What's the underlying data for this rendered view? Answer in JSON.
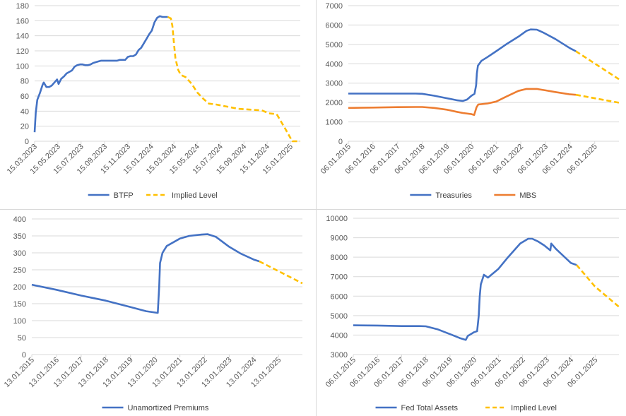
{
  "chart_data": [
    {
      "type": "line",
      "title": "",
      "xlabel": "",
      "ylabel": "",
      "ylim": [
        0,
        180
      ],
      "yticks": [
        0,
        20,
        40,
        60,
        80,
        100,
        120,
        140,
        160,
        180
      ],
      "grid": true,
      "legend_position": "bottom",
      "x_type": "date",
      "x_ticks": [
        "15.03.2023",
        "15.05.2023",
        "15.07.2023",
        "15.09.2023",
        "15.11.2023",
        "15.01.2024",
        "15.03.2024",
        "15.05.2024",
        "15.07.2024",
        "15.09.2024",
        "15.11.2024",
        "15.01.2025"
      ],
      "xlim": [
        "2023-03-15",
        "2025-02-10"
      ],
      "series": [
        {
          "name": "BTFP",
          "color": "#4472c4",
          "style": "solid",
          "points": [
            [
              "2023-03-15",
              12
            ],
            [
              "2023-03-18",
              38
            ],
            [
              "2023-03-22",
              55
            ],
            [
              "2023-03-29",
              64
            ],
            [
              "2023-04-05",
              75
            ],
            [
              "2023-04-08",
              78
            ],
            [
              "2023-04-15",
              72
            ],
            [
              "2023-04-22",
              72
            ],
            [
              "2023-04-29",
              74
            ],
            [
              "2023-05-06",
              78
            ],
            [
              "2023-05-13",
              82
            ],
            [
              "2023-05-17",
              76
            ],
            [
              "2023-05-24",
              83
            ],
            [
              "2023-05-31",
              86
            ],
            [
              "2023-06-07",
              90
            ],
            [
              "2023-06-14",
              92
            ],
            [
              "2023-06-21",
              94
            ],
            [
              "2023-06-28",
              99
            ],
            [
              "2023-07-05",
              101
            ],
            [
              "2023-07-12",
              102
            ],
            [
              "2023-07-19",
              102
            ],
            [
              "2023-07-26",
              101
            ],
            [
              "2023-08-02",
              101
            ],
            [
              "2023-08-09",
              102
            ],
            [
              "2023-08-16",
              104
            ],
            [
              "2023-08-23",
              105
            ],
            [
              "2023-08-30",
              106
            ],
            [
              "2023-09-06",
              107
            ],
            [
              "2023-09-13",
              107
            ],
            [
              "2023-09-20",
              107
            ],
            [
              "2023-09-27",
              107
            ],
            [
              "2023-10-04",
              107
            ],
            [
              "2023-10-11",
              107
            ],
            [
              "2023-10-18",
              107
            ],
            [
              "2023-10-25",
              108
            ],
            [
              "2023-11-01",
              108
            ],
            [
              "2023-11-08",
              108
            ],
            [
              "2023-11-15",
              112
            ],
            [
              "2023-11-22",
              113
            ],
            [
              "2023-11-29",
              113
            ],
            [
              "2023-12-06",
              115
            ],
            [
              "2023-12-13",
              121
            ],
            [
              "2023-12-20",
              124
            ],
            [
              "2023-12-27",
              130
            ],
            [
              "2024-01-03",
              136
            ],
            [
              "2024-01-10",
              142
            ],
            [
              "2024-01-17",
              147
            ],
            [
              "2024-01-24",
              158
            ],
            [
              "2024-01-31",
              164
            ],
            [
              "2024-02-07",
              166
            ],
            [
              "2024-02-14",
              165
            ],
            [
              "2024-02-21",
              165
            ],
            [
              "2024-02-28",
              165
            ]
          ]
        },
        {
          "name": "Implied Level",
          "color": "#ffc000",
          "style": "dashed",
          "points": [
            [
              "2024-02-28",
              165
            ],
            [
              "2024-03-07",
              163
            ],
            [
              "2024-03-11",
              153
            ],
            [
              "2024-03-15",
              130
            ],
            [
              "2024-03-19",
              110
            ],
            [
              "2024-03-26",
              95
            ],
            [
              "2024-04-02",
              88
            ],
            [
              "2024-04-15",
              85
            ],
            [
              "2024-05-01",
              76
            ],
            [
              "2024-05-15",
              65
            ],
            [
              "2024-06-01",
              56
            ],
            [
              "2024-06-15",
              50
            ],
            [
              "2024-07-01",
              49
            ],
            [
              "2024-08-01",
              46
            ],
            [
              "2024-09-01",
              43
            ],
            [
              "2024-10-01",
              42
            ],
            [
              "2024-11-01",
              41
            ],
            [
              "2024-11-20",
              37
            ],
            [
              "2024-12-10",
              36
            ],
            [
              "2025-01-01",
              17
            ],
            [
              "2025-01-20",
              0
            ],
            [
              "2025-02-10",
              0
            ]
          ]
        }
      ]
    },
    {
      "type": "line",
      "title": "",
      "xlabel": "",
      "ylabel": "",
      "ylim": [
        0,
        7000
      ],
      "yticks": [
        0,
        1000,
        2000,
        3000,
        4000,
        5000,
        6000,
        7000
      ],
      "grid": true,
      "legend_position": "bottom",
      "x_type": "date",
      "x_ticks": [
        "06.01.2015",
        "06.01.2016",
        "06.01.2017",
        "06.01.2018",
        "06.01.2019",
        "06.01.2020",
        "06.01.2021",
        "06.01.2022",
        "06.01.2023",
        "06.01.2024",
        "06.01.2025"
      ],
      "xlim": [
        "2015-01-06",
        "2025-12-31"
      ],
      "series": [
        {
          "name": "Treasuries",
          "color": "#4472c4",
          "style": "solid",
          "points": [
            [
              "2015-01-06",
              2460
            ],
            [
              "2016-01-06",
              2460
            ],
            [
              "2017-01-06",
              2460
            ],
            [
              "2017-10-01",
              2460
            ],
            [
              "2018-01-06",
              2450
            ],
            [
              "2018-07-01",
              2350
            ],
            [
              "2019-01-06",
              2220
            ],
            [
              "2019-06-01",
              2120
            ],
            [
              "2019-09-01",
              2080
            ],
            [
              "2019-11-01",
              2150
            ],
            [
              "2020-01-06",
              2350
            ],
            [
              "2020-02-20",
              2450
            ],
            [
              "2020-03-15",
              2900
            ],
            [
              "2020-03-25",
              3500
            ],
            [
              "2020-04-10",
              3900
            ],
            [
              "2020-06-01",
              4150
            ],
            [
              "2020-09-01",
              4350
            ],
            [
              "2021-01-06",
              4650
            ],
            [
              "2021-06-01",
              5000
            ],
            [
              "2021-12-01",
              5400
            ],
            [
              "2022-04-01",
              5700
            ],
            [
              "2022-06-01",
              5770
            ],
            [
              "2022-09-01",
              5760
            ],
            [
              "2022-12-01",
              5620
            ],
            [
              "2023-06-01",
              5280
            ],
            [
              "2024-01-06",
              4800
            ],
            [
              "2024-04-01",
              4650
            ]
          ]
        },
        {
          "name": "",
          "color": "#ffc000",
          "style": "dashed",
          "points": [
            [
              "2024-04-01",
              4650
            ],
            [
              "2025-12-31",
              3200
            ]
          ]
        },
        {
          "name": "MBS",
          "color": "#ed7d31",
          "style": "solid",
          "points": [
            [
              "2015-01-06",
              1720
            ],
            [
              "2016-01-06",
              1740
            ],
            [
              "2017-01-06",
              1760
            ],
            [
              "2017-10-01",
              1770
            ],
            [
              "2018-01-06",
              1770
            ],
            [
              "2018-07-01",
              1720
            ],
            [
              "2019-01-06",
              1630
            ],
            [
              "2019-06-01",
              1520
            ],
            [
              "2019-09-01",
              1460
            ],
            [
              "2020-01-06",
              1400
            ],
            [
              "2020-02-15",
              1360
            ],
            [
              "2020-03-20",
              1750
            ],
            [
              "2020-04-15",
              1900
            ],
            [
              "2020-09-01",
              1950
            ],
            [
              "2021-01-06",
              2050
            ],
            [
              "2021-06-01",
              2300
            ],
            [
              "2021-12-01",
              2600
            ],
            [
              "2022-04-01",
              2700
            ],
            [
              "2022-09-01",
              2700
            ],
            [
              "2023-01-06",
              2630
            ],
            [
              "2023-06-01",
              2540
            ],
            [
              "2024-01-06",
              2420
            ],
            [
              "2024-04-01",
              2400
            ]
          ]
        },
        {
          "name": "",
          "color": "#ffc000",
          "style": "dashed",
          "points": [
            [
              "2024-04-01",
              2400
            ],
            [
              "2025-12-31",
              1990
            ]
          ]
        }
      ]
    },
    {
      "type": "line",
      "title": "",
      "xlabel": "",
      "ylabel": "",
      "ylim": [
        0,
        400
      ],
      "yticks": [
        0,
        50,
        100,
        150,
        200,
        250,
        300,
        350,
        400
      ],
      "grid": true,
      "legend_position": "bottom",
      "x_type": "date",
      "x_ticks": [
        "13.01.2015",
        "13.01.2016",
        "13.01.2017",
        "13.01.2018",
        "13.01.2019",
        "13.01.2020",
        "13.01.2021",
        "13.01.2022",
        "13.01.2023",
        "13.01.2024",
        "13.01.2025"
      ],
      "xlim": [
        "2015-01-13",
        "2025-12-31"
      ],
      "series": [
        {
          "name": "Unamortized Premiums",
          "color": "#4472c4",
          "style": "solid",
          "points": [
            [
              "2015-01-13",
              206
            ],
            [
              "2016-01-13",
              191
            ],
            [
              "2017-01-13",
              174
            ],
            [
              "2018-01-13",
              159
            ],
            [
              "2019-01-13",
              140
            ],
            [
              "2019-09-01",
              128
            ],
            [
              "2020-01-13",
              124
            ],
            [
              "2020-02-20",
              123
            ],
            [
              "2020-03-12",
              200
            ],
            [
              "2020-03-25",
              270
            ],
            [
              "2020-05-01",
              300
            ],
            [
              "2020-07-01",
              320
            ],
            [
              "2021-01-13",
              342
            ],
            [
              "2021-06-01",
              350
            ],
            [
              "2021-12-01",
              354
            ],
            [
              "2022-03-01",
              355
            ],
            [
              "2022-07-01",
              347
            ],
            [
              "2023-01-13",
              318
            ],
            [
              "2023-07-01",
              298
            ],
            [
              "2024-01-13",
              280
            ],
            [
              "2024-04-01",
              275
            ]
          ]
        },
        {
          "name": "",
          "color": "#ffc000",
          "style": "dashed",
          "points": [
            [
              "2024-04-01",
              275
            ],
            [
              "2025-12-31",
              210
            ]
          ]
        }
      ]
    },
    {
      "type": "line",
      "title": "",
      "xlabel": "",
      "ylabel": "",
      "ylim": [
        3000,
        10000
      ],
      "yticks": [
        3000,
        4000,
        5000,
        6000,
        7000,
        8000,
        9000,
        10000
      ],
      "grid": true,
      "legend_position": "bottom",
      "x_type": "date",
      "x_ticks": [
        "06.01.2015",
        "06.01.2016",
        "06.01.2017",
        "06.01.2018",
        "06.01.2019",
        "06.01.2020",
        "06.01.2021",
        "06.01.2022",
        "06.01.2023",
        "06.01.2024",
        "06.01.2025"
      ],
      "xlim": [
        "2015-01-06",
        "2025-12-31"
      ],
      "series": [
        {
          "name": "Fed Total Assets",
          "color": "#4472c4",
          "style": "solid",
          "points": [
            [
              "2015-01-06",
              4500
            ],
            [
              "2016-01-06",
              4490
            ],
            [
              "2017-01-06",
              4460
            ],
            [
              "2017-10-01",
              4460
            ],
            [
              "2018-01-06",
              4450
            ],
            [
              "2018-07-01",
              4300
            ],
            [
              "2019-01-06",
              4050
            ],
            [
              "2019-06-01",
              3850
            ],
            [
              "2019-09-01",
              3750
            ],
            [
              "2019-10-01",
              3950
            ],
            [
              "2020-01-06",
              4150
            ],
            [
              "2020-02-20",
              4200
            ],
            [
              "2020-03-15",
              5000
            ],
            [
              "2020-03-30",
              6000
            ],
            [
              "2020-04-15",
              6600
            ],
            [
              "2020-06-01",
              7100
            ],
            [
              "2020-08-01",
              6950
            ],
            [
              "2021-01-06",
              7400
            ],
            [
              "2021-06-01",
              8000
            ],
            [
              "2021-12-01",
              8700
            ],
            [
              "2022-04-01",
              8950
            ],
            [
              "2022-06-01",
              8950
            ],
            [
              "2022-09-01",
              8800
            ],
            [
              "2022-12-01",
              8600
            ],
            [
              "2023-03-01",
              8350
            ],
            [
              "2023-03-15",
              8700
            ],
            [
              "2023-06-01",
              8400
            ],
            [
              "2024-01-06",
              7700
            ],
            [
              "2024-04-01",
              7600
            ]
          ]
        },
        {
          "name": "Implied Level",
          "color": "#ffc000",
          "style": "dashed",
          "points": [
            [
              "2024-04-01",
              7600
            ],
            [
              "2025-01-01",
              6500
            ],
            [
              "2025-12-31",
              5450
            ]
          ]
        }
      ]
    }
  ]
}
